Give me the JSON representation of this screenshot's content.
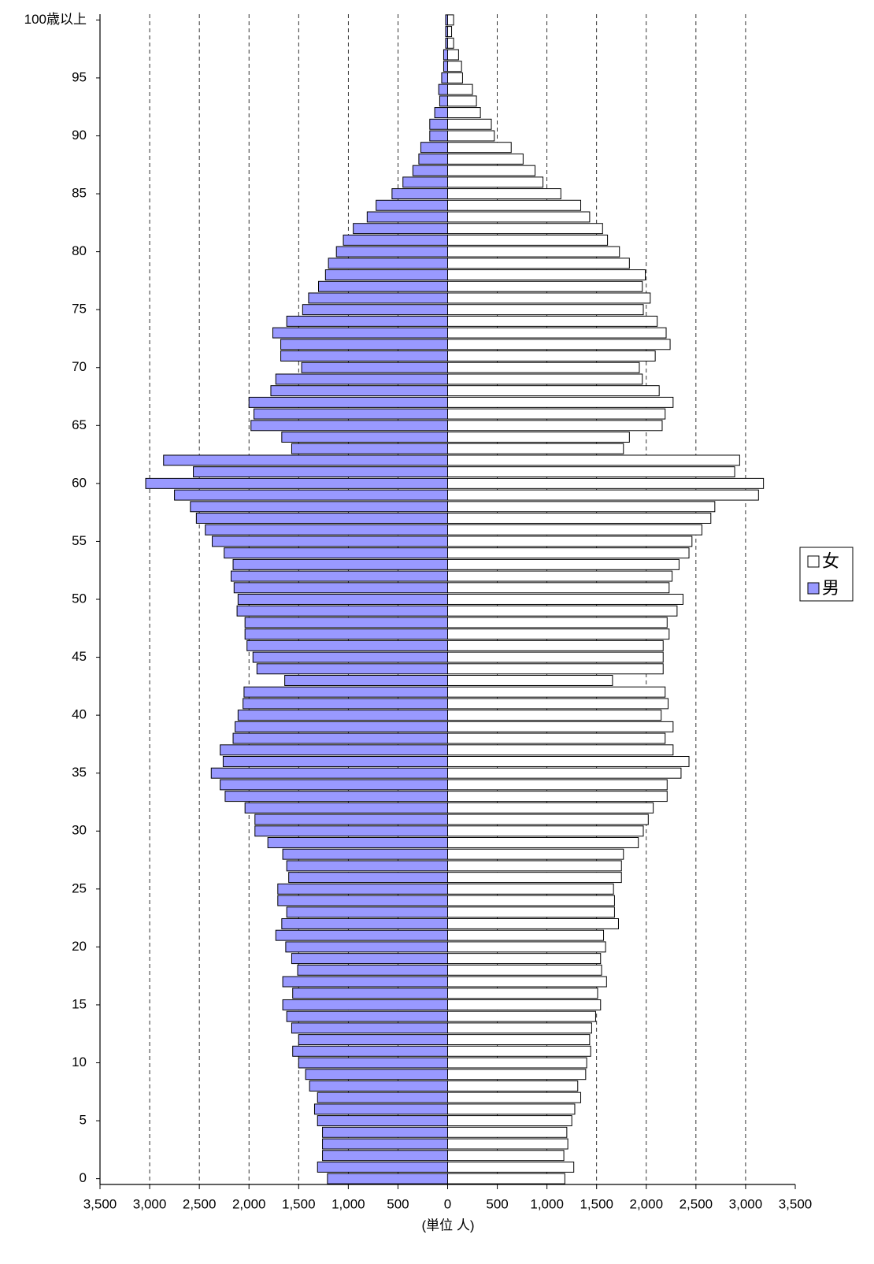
{
  "chart_data": {
    "type": "bar",
    "orientation": "horizontal",
    "x_label": "(単位 人)",
    "categories": [
      "0",
      null,
      null,
      null,
      null,
      "5",
      null,
      null,
      null,
      null,
      "10",
      null,
      null,
      null,
      null,
      "15",
      null,
      null,
      null,
      null,
      "20",
      null,
      null,
      null,
      null,
      "25",
      null,
      null,
      null,
      null,
      "30",
      null,
      null,
      null,
      null,
      "35",
      null,
      null,
      null,
      null,
      "40",
      null,
      null,
      null,
      null,
      "45",
      null,
      null,
      null,
      null,
      "50",
      null,
      null,
      null,
      null,
      "55",
      null,
      null,
      null,
      null,
      "60",
      null,
      null,
      null,
      null,
      "65",
      null,
      null,
      null,
      null,
      "70",
      null,
      null,
      null,
      null,
      "75",
      null,
      null,
      null,
      null,
      "80",
      null,
      null,
      null,
      null,
      "85",
      null,
      null,
      null,
      null,
      "90",
      null,
      null,
      null,
      null,
      "95",
      null,
      null,
      null,
      null,
      "100歳以上"
    ],
    "series": [
      {
        "name": "女",
        "color": "#ffffff",
        "values": [
          1180,
          1270,
          1170,
          1210,
          1200,
          1250,
          1280,
          1340,
          1310,
          1390,
          1400,
          1440,
          1430,
          1450,
          1490,
          1540,
          1510,
          1600,
          1550,
          1540,
          1590,
          1570,
          1720,
          1680,
          1680,
          1670,
          1750,
          1750,
          1770,
          1920,
          1970,
          2020,
          2070,
          2210,
          2210,
          2350,
          2430,
          2270,
          2190,
          2270,
          2150,
          2220,
          2190,
          1660,
          2170,
          2170,
          2170,
          2230,
          2210,
          2310,
          2370,
          2230,
          2260,
          2330,
          2430,
          2460,
          2560,
          2650,
          2690,
          3130,
          3180,
          2890,
          2940,
          1770,
          1830,
          2160,
          2190,
          2270,
          2130,
          1960,
          1930,
          2090,
          2240,
          2200,
          2110,
          1970,
          2040,
          1960,
          1990,
          1830,
          1730,
          1610,
          1560,
          1430,
          1340,
          1140,
          960,
          880,
          760,
          640,
          470,
          440,
          330,
          290,
          250,
          150,
          140,
          110,
          60,
          40,
          60
        ]
      },
      {
        "name": "男",
        "color": "#9999ff",
        "values": [
          -1210,
          -1310,
          -1260,
          -1260,
          -1260,
          -1310,
          -1340,
          -1310,
          -1390,
          -1430,
          -1500,
          -1560,
          -1500,
          -1570,
          -1620,
          -1660,
          -1560,
          -1660,
          -1510,
          -1570,
          -1630,
          -1730,
          -1670,
          -1620,
          -1710,
          -1710,
          -1600,
          -1620,
          -1660,
          -1810,
          -1940,
          -1940,
          -2040,
          -2240,
          -2290,
          -2380,
          -2260,
          -2290,
          -2160,
          -2140,
          -2110,
          -2060,
          -2050,
          -1640,
          -1920,
          -1960,
          -2020,
          -2040,
          -2040,
          -2120,
          -2110,
          -2150,
          -2180,
          -2160,
          -2250,
          -2370,
          -2440,
          -2530,
          -2590,
          -2750,
          -3040,
          -2560,
          -2860,
          -1570,
          -1670,
          -1980,
          -1950,
          -2000,
          -1780,
          -1730,
          -1470,
          -1680,
          -1680,
          -1760,
          -1620,
          -1460,
          -1400,
          -1300,
          -1230,
          -1200,
          -1120,
          -1050,
          -950,
          -810,
          -720,
          -560,
          -450,
          -350,
          -290,
          -270,
          -180,
          -180,
          -130,
          -80,
          -90,
          -60,
          -40,
          -40,
          -20,
          -20,
          -20
        ]
      }
    ],
    "xlim": [
      -3500,
      3500
    ],
    "xticks": [
      {
        "value": -3500,
        "label": "3,500"
      },
      {
        "value": -3000,
        "label": "3,000"
      },
      {
        "value": -2500,
        "label": "2,500"
      },
      {
        "value": -2000,
        "label": "2,000"
      },
      {
        "value": -1500,
        "label": "1,500"
      },
      {
        "value": -1000,
        "label": "1,000"
      },
      {
        "value": -500,
        "label": "500"
      },
      0,
      500,
      {
        "value": 1000,
        "label": "1,000"
      },
      {
        "value": 1500,
        "label": "1,500"
      },
      {
        "value": 2000,
        "label": "2,000"
      },
      {
        "value": 2500,
        "label": "2,500"
      },
      {
        "value": 3000,
        "label": "3,000"
      },
      {
        "value": 3500,
        "label": "3,500"
      }
    ],
    "grid": true,
    "legend": "right"
  }
}
